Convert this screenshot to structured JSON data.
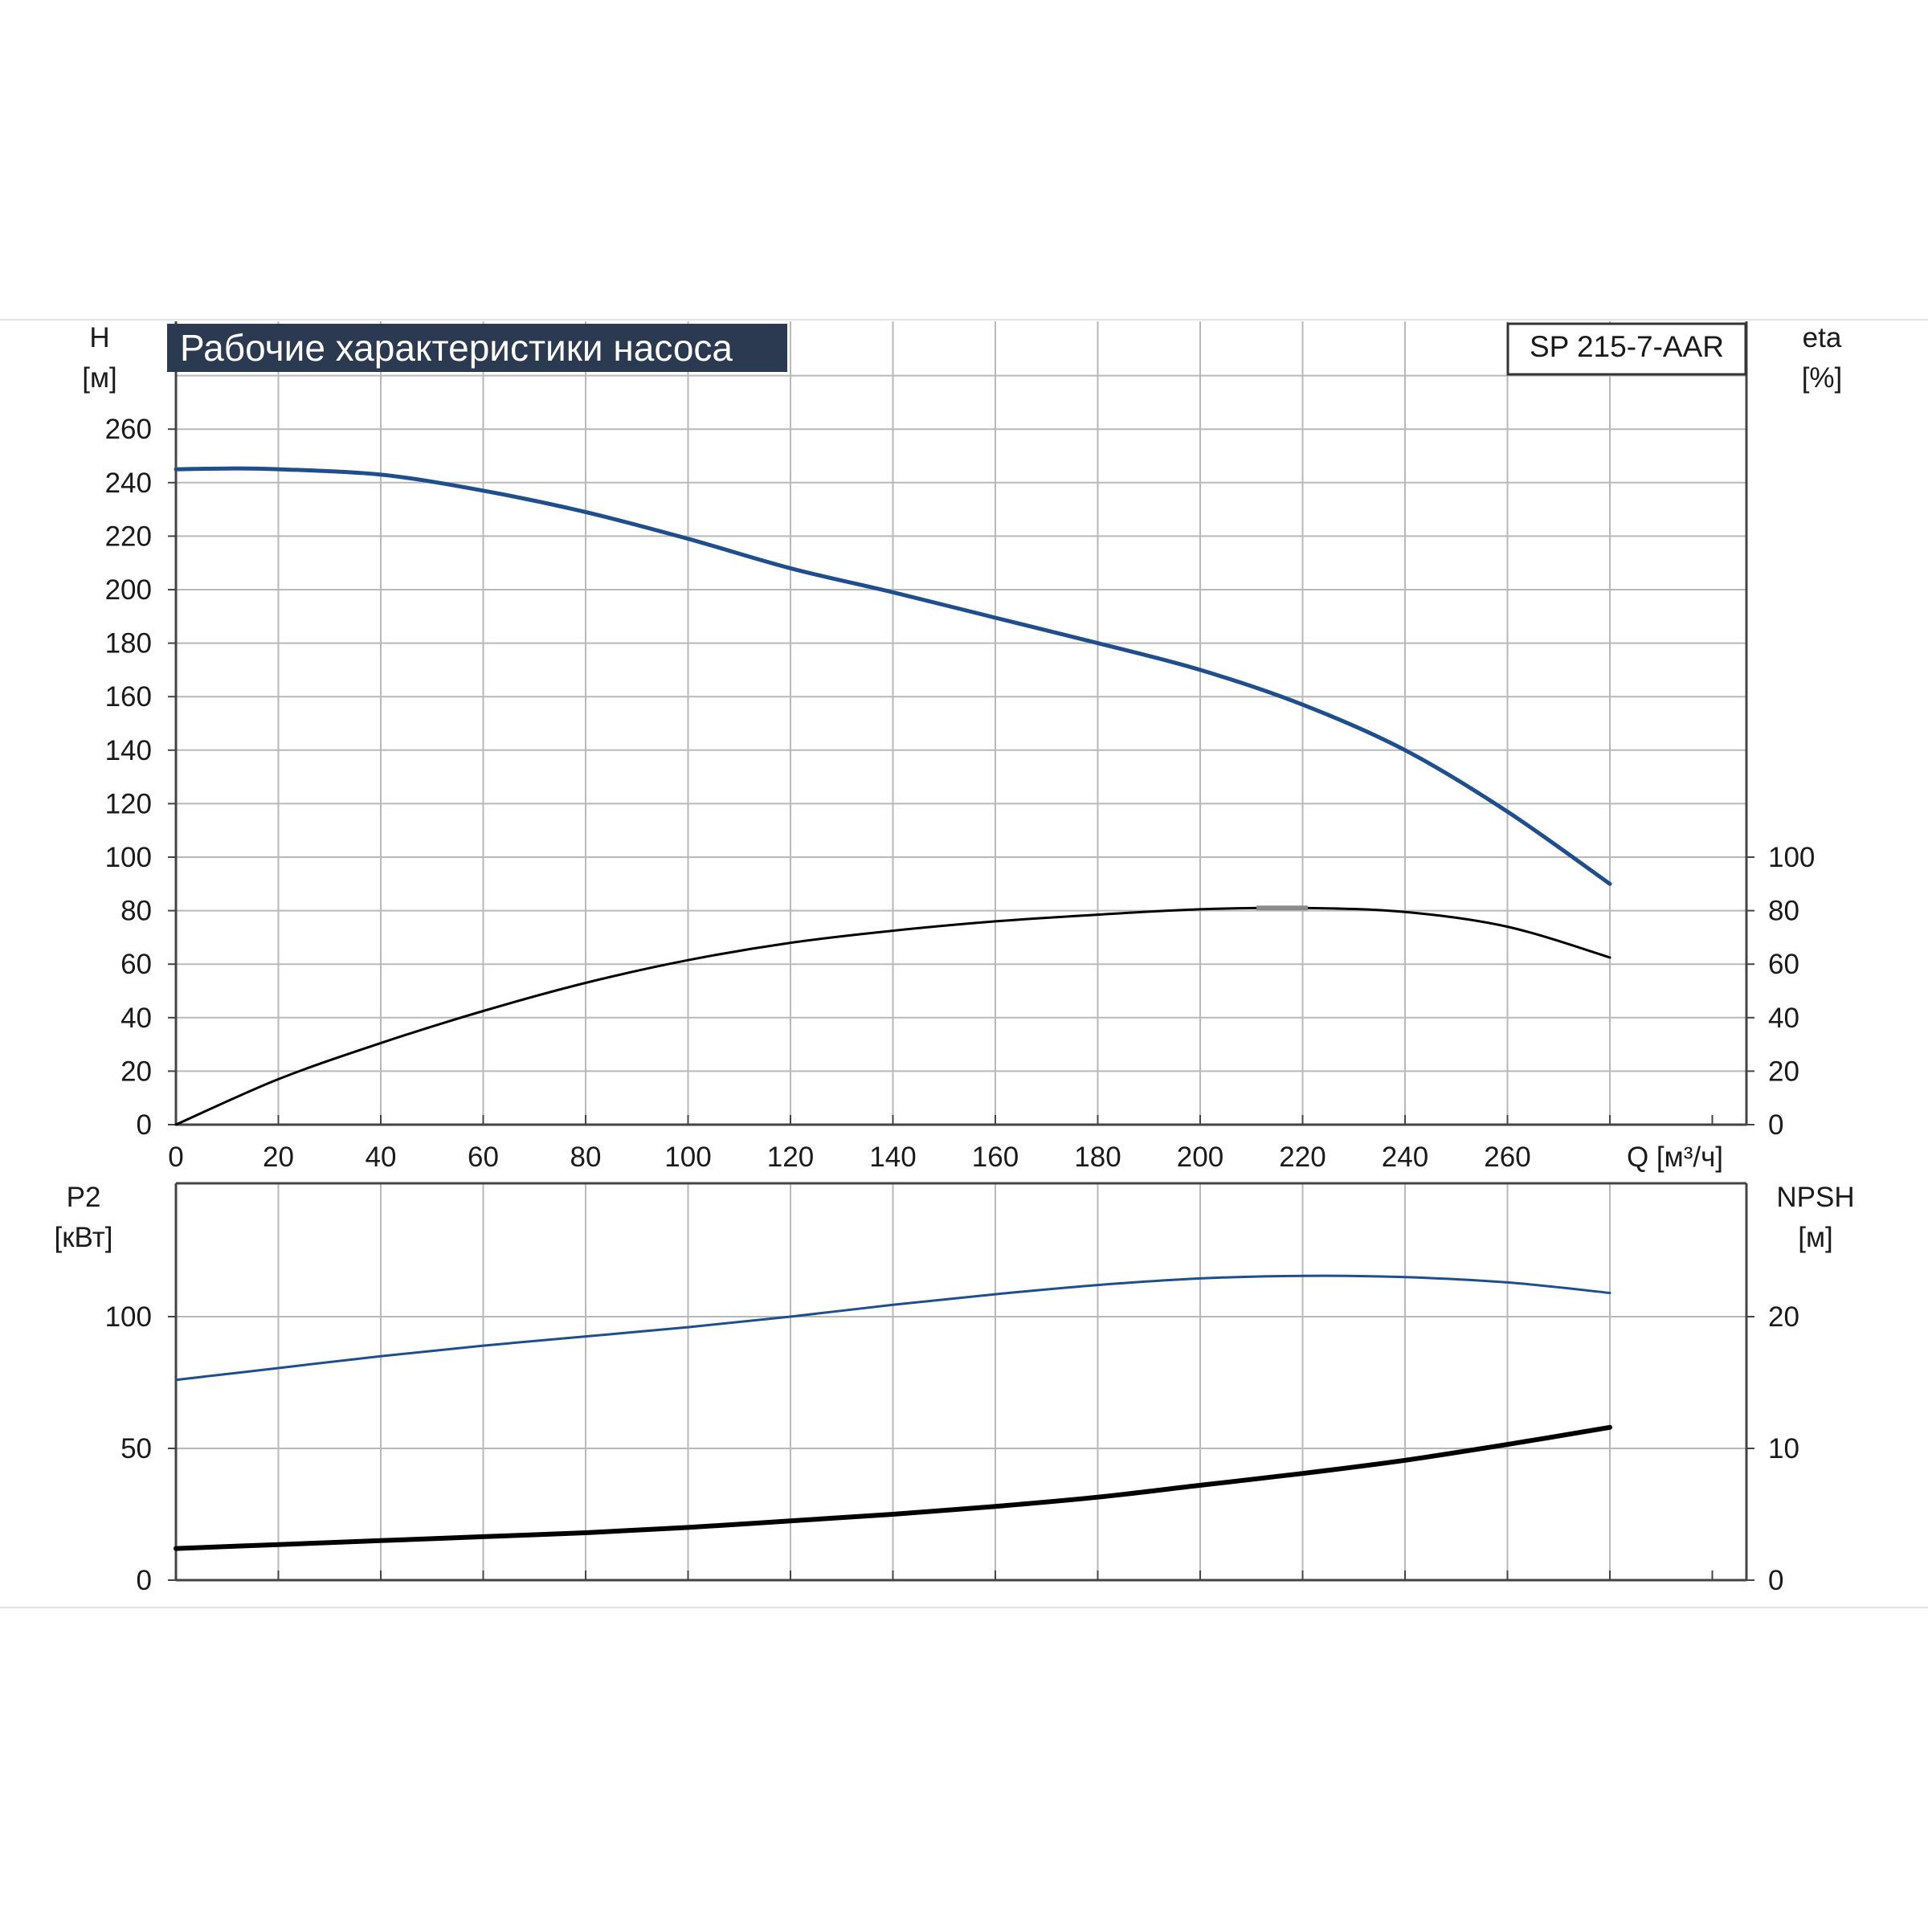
{
  "title": "Рабочие характеристики насоса",
  "model": "SP 215-7-AAR",
  "colors": {
    "title_bg": "#2b3a50",
    "curve_blue": "#1f4e8c",
    "curve_black": "#000000",
    "grid": "#b9b9b9",
    "axis": "#444444",
    "bep_marker": "#8a8a8a"
  },
  "chart_data": [
    {
      "type": "line",
      "panel": "top",
      "xlabel": "Q [м³/ч]",
      "x_ticks": [
        0,
        20,
        40,
        60,
        80,
        100,
        120,
        140,
        160,
        180,
        200,
        220,
        240,
        260
      ],
      "xlim": [
        0,
        300
      ],
      "ylabel_left_top": "H",
      "ylabel_left_bottom": "[м]",
      "ylim_left": [
        0,
        280
      ],
      "y_ticks_left": [
        0,
        20,
        40,
        60,
        80,
        100,
        120,
        140,
        160,
        180,
        200,
        220,
        240,
        260
      ],
      "ylabel_right_top": "eta",
      "ylabel_right_bottom": "[%]",
      "ylim_right": [
        0,
        280
      ],
      "y_ticks_right": [
        0,
        20,
        40,
        60,
        80,
        100
      ],
      "grid": true,
      "series": [
        {
          "axis": "left",
          "color": "curve_blue",
          "width": 5,
          "x": [
            0,
            10,
            20,
            40,
            60,
            80,
            100,
            120,
            140,
            160,
            180,
            200,
            220,
            240,
            260,
            280
          ],
          "y": [
            245,
            245.3,
            245,
            243,
            237,
            229,
            219,
            208,
            199,
            189.5,
            180,
            170,
            157,
            140,
            117,
            90
          ]
        },
        {
          "axis": "right",
          "color": "curve_black",
          "width": 3,
          "x": [
            0,
            20,
            40,
            60,
            80,
            100,
            120,
            140,
            160,
            180,
            200,
            220,
            240,
            260,
            280
          ],
          "y": [
            0,
            17,
            30.5,
            42.5,
            53,
            61.5,
            68,
            72.5,
            76,
            78.5,
            80.5,
            81,
            79.5,
            74,
            62.5
          ]
        }
      ],
      "annotations": [
        {
          "type": "bep",
          "x_from": 211,
          "x_to": 221,
          "y": 81
        }
      ]
    },
    {
      "type": "line",
      "panel": "bottom",
      "xlim": [
        0,
        300
      ],
      "ylabel_left_top": "P2",
      "ylabel_left_bottom": "[кВт]",
      "ylim_left": [
        0,
        150
      ],
      "y_ticks_left": [
        0,
        50,
        100
      ],
      "ylabel_right_top": "NPSH",
      "ylabel_right_bottom": "[м]",
      "ylim_right": [
        0,
        30
      ],
      "y_ticks_right": [
        0,
        10,
        20
      ],
      "grid": true,
      "series": [
        {
          "axis": "left",
          "color": "curve_blue",
          "width": 3,
          "x": [
            0,
            20,
            40,
            60,
            80,
            100,
            120,
            140,
            160,
            180,
            200,
            220,
            240,
            260,
            280
          ],
          "y": [
            76,
            80.5,
            85,
            89,
            92.5,
            96,
            100,
            104.5,
            108.5,
            112,
            114.5,
            115.5,
            115,
            113,
            109
          ]
        },
        {
          "axis": "right",
          "color": "curve_black",
          "width": 6,
          "x": [
            0,
            20,
            40,
            60,
            80,
            100,
            120,
            140,
            160,
            180,
            200,
            220,
            240,
            260,
            280
          ],
          "y": [
            2.4,
            2.7,
            3.0,
            3.3,
            3.6,
            4.0,
            4.5,
            5.0,
            5.6,
            6.3,
            7.2,
            8.1,
            9.1,
            10.3,
            11.6
          ]
        }
      ]
    }
  ]
}
